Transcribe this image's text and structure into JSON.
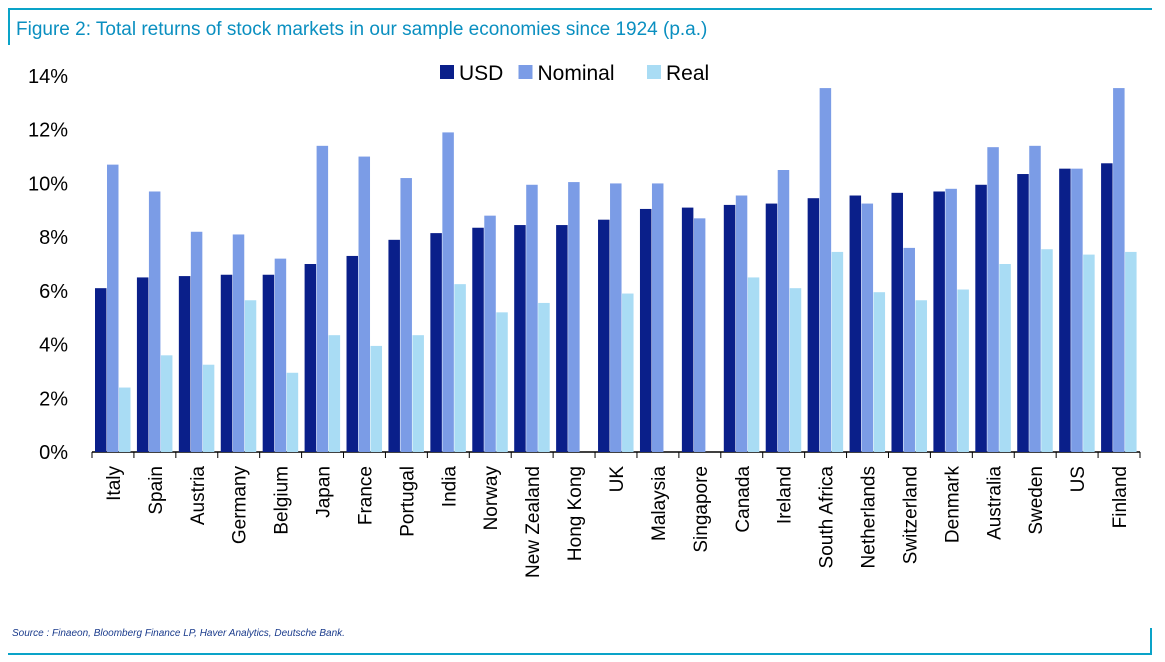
{
  "header": {
    "title": "Figure 2: Total returns of stock markets in our sample economies since 1924 (p.a.)"
  },
  "footer": {
    "source": "Source : Finaeon, Bloomberg Finance LP, Haver Analytics, Deutsche Bank."
  },
  "colors": {
    "usd": "#0a1f8a",
    "nominal": "#7b9ce6",
    "real": "#a9dcf4",
    "axis": "#000000",
    "accent": "#0aa3c8"
  },
  "chart_data": {
    "type": "bar",
    "title": "Total returns of stock markets in our sample economies since 1924 (p.a.)",
    "xlabel": "",
    "ylabel": "",
    "ylim": [
      0,
      14
    ],
    "y_ticks": [
      "0%",
      "2%",
      "4%",
      "6%",
      "8%",
      "10%",
      "12%",
      "14%"
    ],
    "legend_position": "top-center",
    "categories": [
      "Italy",
      "Spain",
      "Austria",
      "Germany",
      "Belgium",
      "Japan",
      "France",
      "Portugal",
      "India",
      "Norway",
      "New Zealand",
      "Hong Kong",
      "UK",
      "Malaysia",
      "Singapore",
      "Canada",
      "Ireland",
      "South Africa",
      "Netherlands",
      "Switzerland",
      "Denmark",
      "Australia",
      "Sweden",
      "US",
      "Finland"
    ],
    "series": [
      {
        "name": "USD",
        "color_key": "usd",
        "values": [
          6.1,
          6.5,
          6.55,
          6.6,
          6.6,
          7.0,
          7.3,
          7.9,
          8.15,
          8.35,
          8.45,
          8.45,
          8.65,
          9.05,
          9.1,
          9.2,
          9.25,
          9.45,
          9.55,
          9.65,
          9.7,
          9.95,
          10.35,
          10.55,
          10.75
        ]
      },
      {
        "name": "Nominal",
        "color_key": "nominal",
        "values": [
          10.7,
          9.7,
          8.2,
          8.1,
          7.2,
          11.4,
          11.0,
          10.2,
          11.9,
          8.8,
          9.95,
          10.05,
          10.0,
          10.0,
          8.7,
          9.55,
          10.5,
          13.55,
          9.25,
          7.6,
          9.8,
          11.35,
          11.4,
          10.55,
          13.55
        ]
      },
      {
        "name": "Real",
        "color_key": "real",
        "values": [
          2.4,
          3.6,
          3.25,
          5.65,
          2.95,
          4.35,
          3.95,
          4.35,
          6.25,
          5.2,
          5.55,
          null,
          5.9,
          null,
          null,
          6.5,
          6.1,
          7.45,
          5.95,
          5.65,
          6.05,
          7.0,
          7.55,
          7.35,
          7.45
        ]
      }
    ]
  }
}
